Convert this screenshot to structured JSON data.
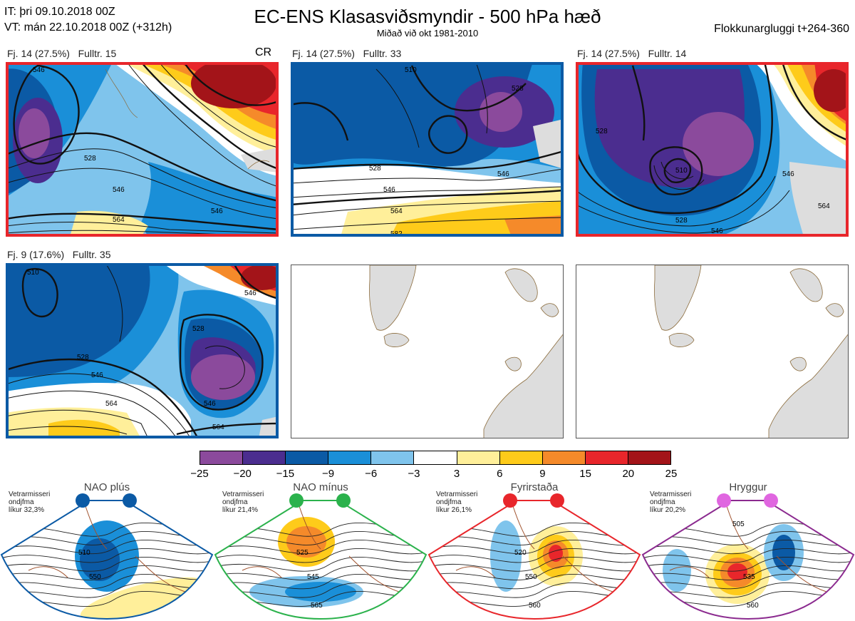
{
  "header": {
    "it_line": "IT: þri 09.10.2018 00Z",
    "vt_line": "VT: mán 22.10.2018 00Z  (+312h)",
    "title": "EC-ENS Klasasviðsmyndir - 500 hPa hæð",
    "subtitle": "Miðað við okt 1981-2010",
    "window": "Flokkunargluggi t+264-360"
  },
  "panels": [
    {
      "label": "Fj. 14 (27.5%)   Fulltr. 15",
      "tag": "CR",
      "border": "#e8262b",
      "contours": [
        "546",
        "528",
        "546",
        "564",
        "546"
      ]
    },
    {
      "label": "Fj. 14 (27.5%)   Fulltr. 33",
      "tag": "",
      "border": "#0b5aa5",
      "contours": [
        "510",
        "528",
        "546",
        "564",
        "528",
        "546",
        "582"
      ]
    },
    {
      "label": "Fj. 14 (27.5%)   Fulltr. 14",
      "tag": "",
      "border": "#e8262b",
      "contours": [
        "528",
        "510",
        "546",
        "528",
        "546",
        "564"
      ]
    },
    {
      "label": "Fj. 9 (17.6%)   Fulltr. 35",
      "tag": "",
      "border": "#0b5aa5",
      "contours": [
        "510",
        "528",
        "546",
        "564",
        "528",
        "546",
        "564",
        "546"
      ]
    }
  ],
  "colorbar": {
    "ticks": [
      "−25",
      "−20",
      "−15",
      "−9",
      "−6",
      "−3",
      "3",
      "6",
      "9",
      "15",
      "20",
      "25"
    ],
    "colors": [
      "#8b4a9c",
      "#4b2d8f",
      "#0b5aa5",
      "#1a8fd8",
      "#7fc4ec",
      "#ffffff",
      "#ffef9a",
      "#fecb1a",
      "#f58a2a",
      "#e8262b",
      "#a31419"
    ]
  },
  "regimes": [
    {
      "name": "NAO plús",
      "note": [
        "Vetrarmisseri",
        "ondjfma",
        "líkur 32,3%"
      ],
      "dot": "#0b5aa5",
      "border": "#0b5aa5",
      "contours": [
        "510",
        "550"
      ]
    },
    {
      "name": "NAO mínus",
      "note": [
        "Vetrarmisseri",
        "ondjfma",
        "líkur 21,4%"
      ],
      "dot": "#2bb24c",
      "border": "#2bb24c",
      "contours": [
        "525",
        "545",
        "565"
      ]
    },
    {
      "name": "Fyrirstaða",
      "note": [
        "Vetrarmisseri",
        "ondjfma",
        "líkur 26,1%"
      ],
      "dot": "#e8262b",
      "border": "#e8262b",
      "contours": [
        "520",
        "550",
        "560"
      ]
    },
    {
      "name": "Hryggur",
      "note": [
        "Vetrarmisseri",
        "ondjfma",
        "líkur 20,2%"
      ],
      "dot": "#e066e0",
      "border": "#8b2a8f",
      "contours": [
        "505",
        "535",
        "560"
      ]
    }
  ]
}
